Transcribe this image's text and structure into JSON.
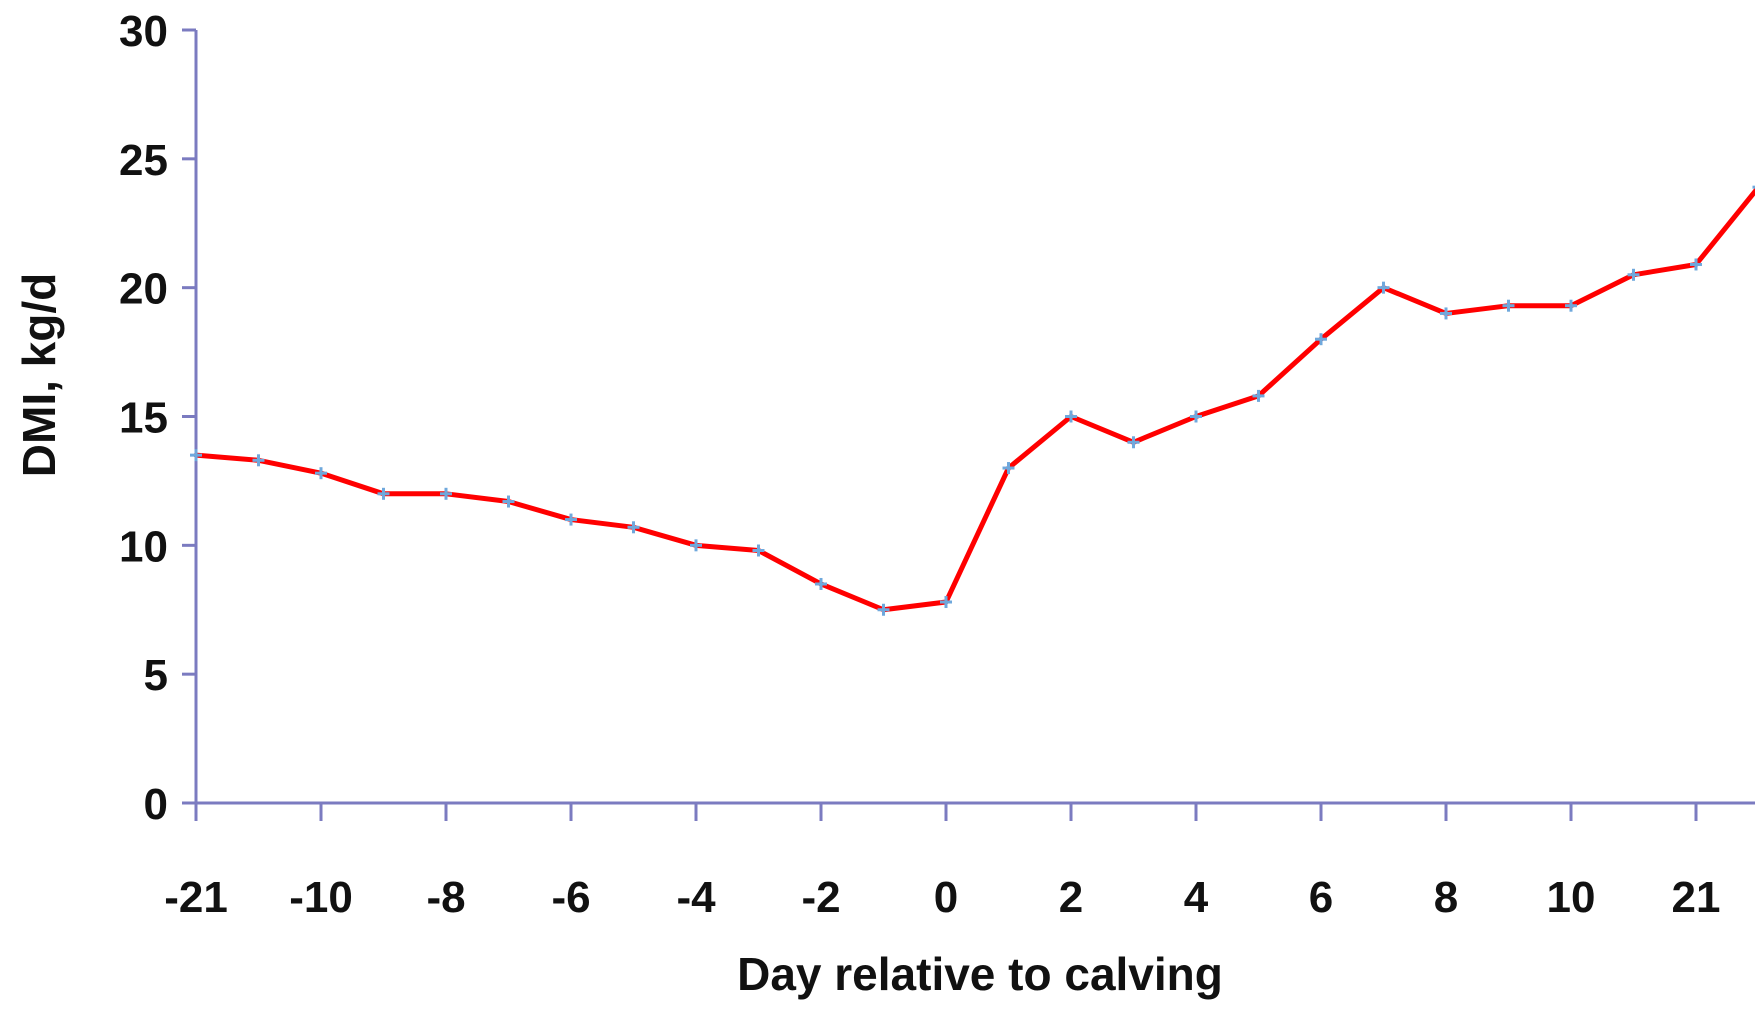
{
  "chart_data": {
    "type": "line",
    "title": "",
    "xlabel": "Day relative to calving",
    "ylabel": "DMI, kg/d",
    "ylim": [
      0,
      30
    ],
    "yticks": [
      0,
      5,
      10,
      15,
      20,
      25,
      30
    ],
    "x_tick_labels": [
      "-21",
      "-10",
      "-8",
      "-6",
      "-4",
      "-2",
      "0",
      "2",
      "4",
      "6",
      "8",
      "10",
      "21"
    ],
    "grid": false,
    "legend": "none",
    "colors": {
      "line": "#ff0000",
      "marker": "#6fa8dc",
      "axis": "#7b7bc0",
      "text": "#111111"
    },
    "series": [
      {
        "x": [
          "-21",
          "",
          "-10",
          "",
          "-8",
          "",
          "-6",
          "",
          "-4",
          "",
          "-2",
          "",
          "0",
          "",
          "2",
          "",
          "4",
          "",
          "6",
          "",
          "8",
          "",
          "10",
          "",
          "21",
          ""
        ],
        "values": [
          13.5,
          13.3,
          12.8,
          12.0,
          12.0,
          11.7,
          11.0,
          10.7,
          10.0,
          9.8,
          8.5,
          7.5,
          7.8,
          13.0,
          15.0,
          14.0,
          15.0,
          15.8,
          18.0,
          20.0,
          19.0,
          19.3,
          19.3,
          20.5,
          20.9,
          23.9
        ]
      }
    ]
  }
}
